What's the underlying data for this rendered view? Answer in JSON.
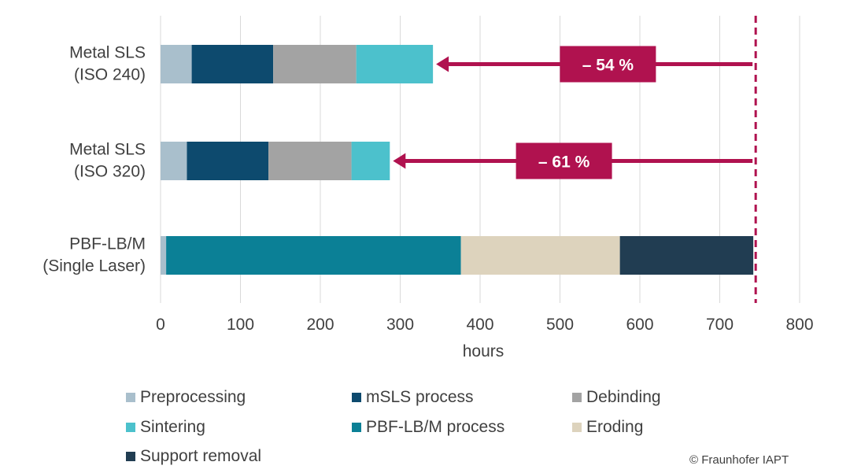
{
  "chart_data": {
    "type": "bar",
    "orientation": "horizontal",
    "stacked": true,
    "categories": [
      [
        "Metal SLS",
        "(ISO 240)"
      ],
      [
        "Metal SLS",
        "(ISO 320)"
      ],
      [
        "PBF-LB/M",
        "(Single Laser)"
      ]
    ],
    "series": [
      {
        "name": "Preprocessing",
        "color": "#a9bfcc",
        "values": [
          39,
          33,
          7
        ]
      },
      {
        "name": "mSLS process",
        "color": "#0d4a6e",
        "values": [
          102,
          102,
          0
        ]
      },
      {
        "name": "Debinding",
        "color": "#a3a3a3",
        "values": [
          104,
          104,
          0
        ]
      },
      {
        "name": "Sintering",
        "color": "#4cc1cc",
        "values": [
          96,
          48,
          0
        ]
      },
      {
        "name": "PBF-LB/M process",
        "color": "#0b8096",
        "values": [
          0,
          0,
          369
        ]
      },
      {
        "name": "Eroding",
        "color": "#ddd3bd",
        "values": [
          0,
          0,
          199
        ]
      },
      {
        "name": "Support removal",
        "color": "#213d52",
        "values": [
          0,
          0,
          167
        ]
      }
    ],
    "xlabel": "hours",
    "xlim": [
      0,
      800
    ],
    "xticks": [
      0,
      100,
      200,
      300,
      400,
      500,
      600,
      700,
      800
    ],
    "grid": true,
    "reference_line": {
      "value": 745,
      "color": "#b0124f",
      "style": "dashed"
    },
    "annotations": [
      {
        "text": "– 54 %",
        "row": 0,
        "from": 745,
        "to": 341,
        "label_center": 560
      },
      {
        "text": "– 61 %",
        "row": 1,
        "from": 745,
        "to": 287,
        "label_center": 505
      }
    ],
    "legend_position": "bottom",
    "legend_order": [
      "Preprocessing",
      "mSLS process",
      "Debinding",
      "Sintering",
      "PBF-LB/M process",
      "Eroding",
      "Support removal"
    ]
  },
  "copyright": "© Fraunhofer IAPT",
  "colors": {
    "accent": "#b0124f",
    "text": "#404040",
    "grid": "#d9d9d9"
  }
}
